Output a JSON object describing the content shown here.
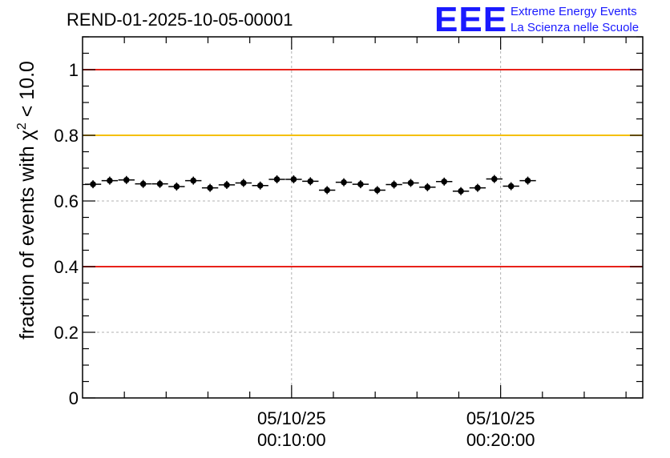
{
  "chart_data": {
    "type": "scatter",
    "title": "REND-01-2025-10-05-00001",
    "ylabel_prefix": "fraction of events with ",
    "ylabel_symbol": "χ",
    "ylabel_exponent": "2",
    "ylabel_suffix": " < 10.0",
    "xlabel": "",
    "ylim": [
      0,
      1.1
    ],
    "xlim_minutes": [
      0,
      26.8
    ],
    "y_ticks": [
      {
        "value": 0,
        "label": "0"
      },
      {
        "value": 0.2,
        "label": "0.2"
      },
      {
        "value": 0.4,
        "label": "0.4"
      },
      {
        "value": 0.6,
        "label": "0.6"
      },
      {
        "value": 0.8,
        "label": "0.8"
      },
      {
        "value": 1.0,
        "label": "1"
      }
    ],
    "x_major_ticks": [
      {
        "minute": 10,
        "date": "05/10/25",
        "time": "00:10:00"
      },
      {
        "minute": 20,
        "date": "05/10/25",
        "time": "00:20:00"
      }
    ],
    "x_minor_tick_step_minutes": 2,
    "reference_lines": [
      {
        "y": 1.0,
        "color": "#e8221a"
      },
      {
        "y": 0.8,
        "color": "#f5c000"
      },
      {
        "y": 0.4,
        "color": "#e8221a"
      }
    ],
    "bin_width_minutes": 0.78,
    "points": [
      {
        "x": 0.5,
        "y": 0.651
      },
      {
        "x": 1.3,
        "y": 0.662
      },
      {
        "x": 2.1,
        "y": 0.664
      },
      {
        "x": 2.9,
        "y": 0.652
      },
      {
        "x": 3.7,
        "y": 0.652
      },
      {
        "x": 4.5,
        "y": 0.644
      },
      {
        "x": 5.3,
        "y": 0.662
      },
      {
        "x": 6.1,
        "y": 0.64
      },
      {
        "x": 6.9,
        "y": 0.649
      },
      {
        "x": 7.7,
        "y": 0.655
      },
      {
        "x": 8.5,
        "y": 0.647
      },
      {
        "x": 9.3,
        "y": 0.666
      },
      {
        "x": 10.1,
        "y": 0.666
      },
      {
        "x": 10.9,
        "y": 0.66
      },
      {
        "x": 11.7,
        "y": 0.633
      },
      {
        "x": 12.5,
        "y": 0.657
      },
      {
        "x": 13.3,
        "y": 0.651
      },
      {
        "x": 14.1,
        "y": 0.633
      },
      {
        "x": 14.9,
        "y": 0.65
      },
      {
        "x": 15.7,
        "y": 0.655
      },
      {
        "x": 16.5,
        "y": 0.642
      },
      {
        "x": 17.3,
        "y": 0.659
      },
      {
        "x": 18.1,
        "y": 0.63
      },
      {
        "x": 18.9,
        "y": 0.64
      },
      {
        "x": 19.7,
        "y": 0.667
      },
      {
        "x": 20.5,
        "y": 0.645
      },
      {
        "x": 21.3,
        "y": 0.662
      }
    ],
    "grid": true,
    "marker_color": "#000000"
  },
  "logo": {
    "main": "EEE",
    "line1": "Extreme Energy Events",
    "line2": "La Scienza nelle Scuole",
    "color": "#1a1aff"
  }
}
